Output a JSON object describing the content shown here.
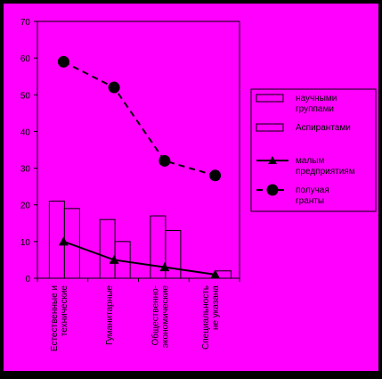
{
  "colors": {
    "outer_background": "#000000",
    "chart_background": "#ff00ff",
    "axis": "#000000",
    "bar_fill": "#ff00ff",
    "bar_stroke": "#000000",
    "line_series": "#000000"
  },
  "chart_data": {
    "type": "bar+line",
    "categories": [
      [
        "Естественные и",
        "технические"
      ],
      [
        "Гуманитарные"
      ],
      [
        "Общественно-",
        "экономические"
      ],
      [
        "Специальность",
        "не указана"
      ]
    ],
    "ylim": [
      0,
      70
    ],
    "yticks": [
      0,
      10,
      20,
      30,
      40,
      50,
      60,
      70
    ],
    "grid": false,
    "legend_position": "right",
    "series": [
      {
        "name": [
          "научными",
          "группами"
        ],
        "kind": "bar",
        "values": [
          21,
          16,
          17,
          0
        ]
      },
      {
        "name": [
          "Аспирантами"
        ],
        "kind": "bar",
        "values": [
          19,
          10,
          13,
          2
        ]
      },
      {
        "name": [
          "малым",
          "предприятиям"
        ],
        "kind": "line",
        "marker": "triangle",
        "dash": "solid",
        "values": [
          10,
          5,
          3,
          1
        ]
      },
      {
        "name": [
          "получая",
          "гранты"
        ],
        "kind": "line",
        "marker": "circle",
        "dash": "dashed",
        "values": [
          59,
          52,
          32,
          28
        ]
      }
    ]
  }
}
